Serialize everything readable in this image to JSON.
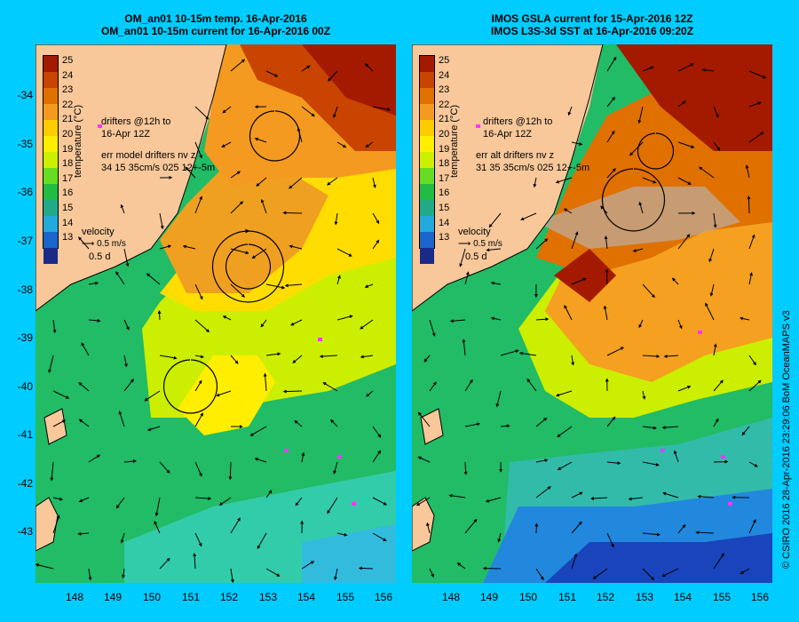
{
  "left_panel": {
    "title_line1": "OM_an01 10-15m temp. 16-Apr-2016",
    "title_line2": "OM_an01 10-15m current for 16-Apr-2016 00Z",
    "drifters_label_1": "drifters @12h to",
    "drifters_label_2": "16-Apr 12Z",
    "err_label_1": "err model drifters nv z",
    "err_label_2": "34 15 35cm/s 025 12+-5m",
    "velocity_label": "velocity",
    "velocity_scale": "0.5 m/s",
    "velocity_days": "0.5 d"
  },
  "right_panel": {
    "title_line1": "IMOS GSLA current for 15-Apr-2016 12Z",
    "title_line2": "IMOS L3S-3d SST at 16-Apr-2016 09:20Z",
    "drifters_label_1": "drifters @12h to",
    "drifters_label_2": "16-Apr 12Z",
    "err_label_1": "err alt drifters nv z",
    "err_label_2": "31 35 35cm/s 025 12+-5m",
    "velocity_label": "velocity",
    "velocity_scale": "0.5 m/s",
    "velocity_days": "0.5 d"
  },
  "colorbar": {
    "title": "temperature (°C)",
    "labels": [
      "25",
      "24",
      "23",
      "22",
      "21",
      "20",
      "19",
      "18",
      "17",
      "16",
      "15",
      "14",
      "13"
    ],
    "colors": [
      "#a31a00",
      "#c84400",
      "#e07000",
      "#f59a20",
      "#ffcc00",
      "#ffee00",
      "#ccf000",
      "#66dd22",
      "#22bb44",
      "#22aa88",
      "#22aadd",
      "#1a66cc",
      "#1a2a88"
    ]
  },
  "y_axis_labels": [
    "-34",
    "-35",
    "-36",
    "-37",
    "-38",
    "-39",
    "-40",
    "-41",
    "-42",
    "-43"
  ],
  "x_axis_labels": [
    "148",
    "149",
    "150",
    "151",
    "152",
    "153",
    "154",
    "155",
    "156"
  ],
  "credit": "© CSIRO 2016   28-Apr-2016 23:29:06 BoM OceanMAPS v3",
  "colors": {
    "background": "#00ccff",
    "land": "#f8c89a",
    "drifter": "#ff33ff"
  }
}
